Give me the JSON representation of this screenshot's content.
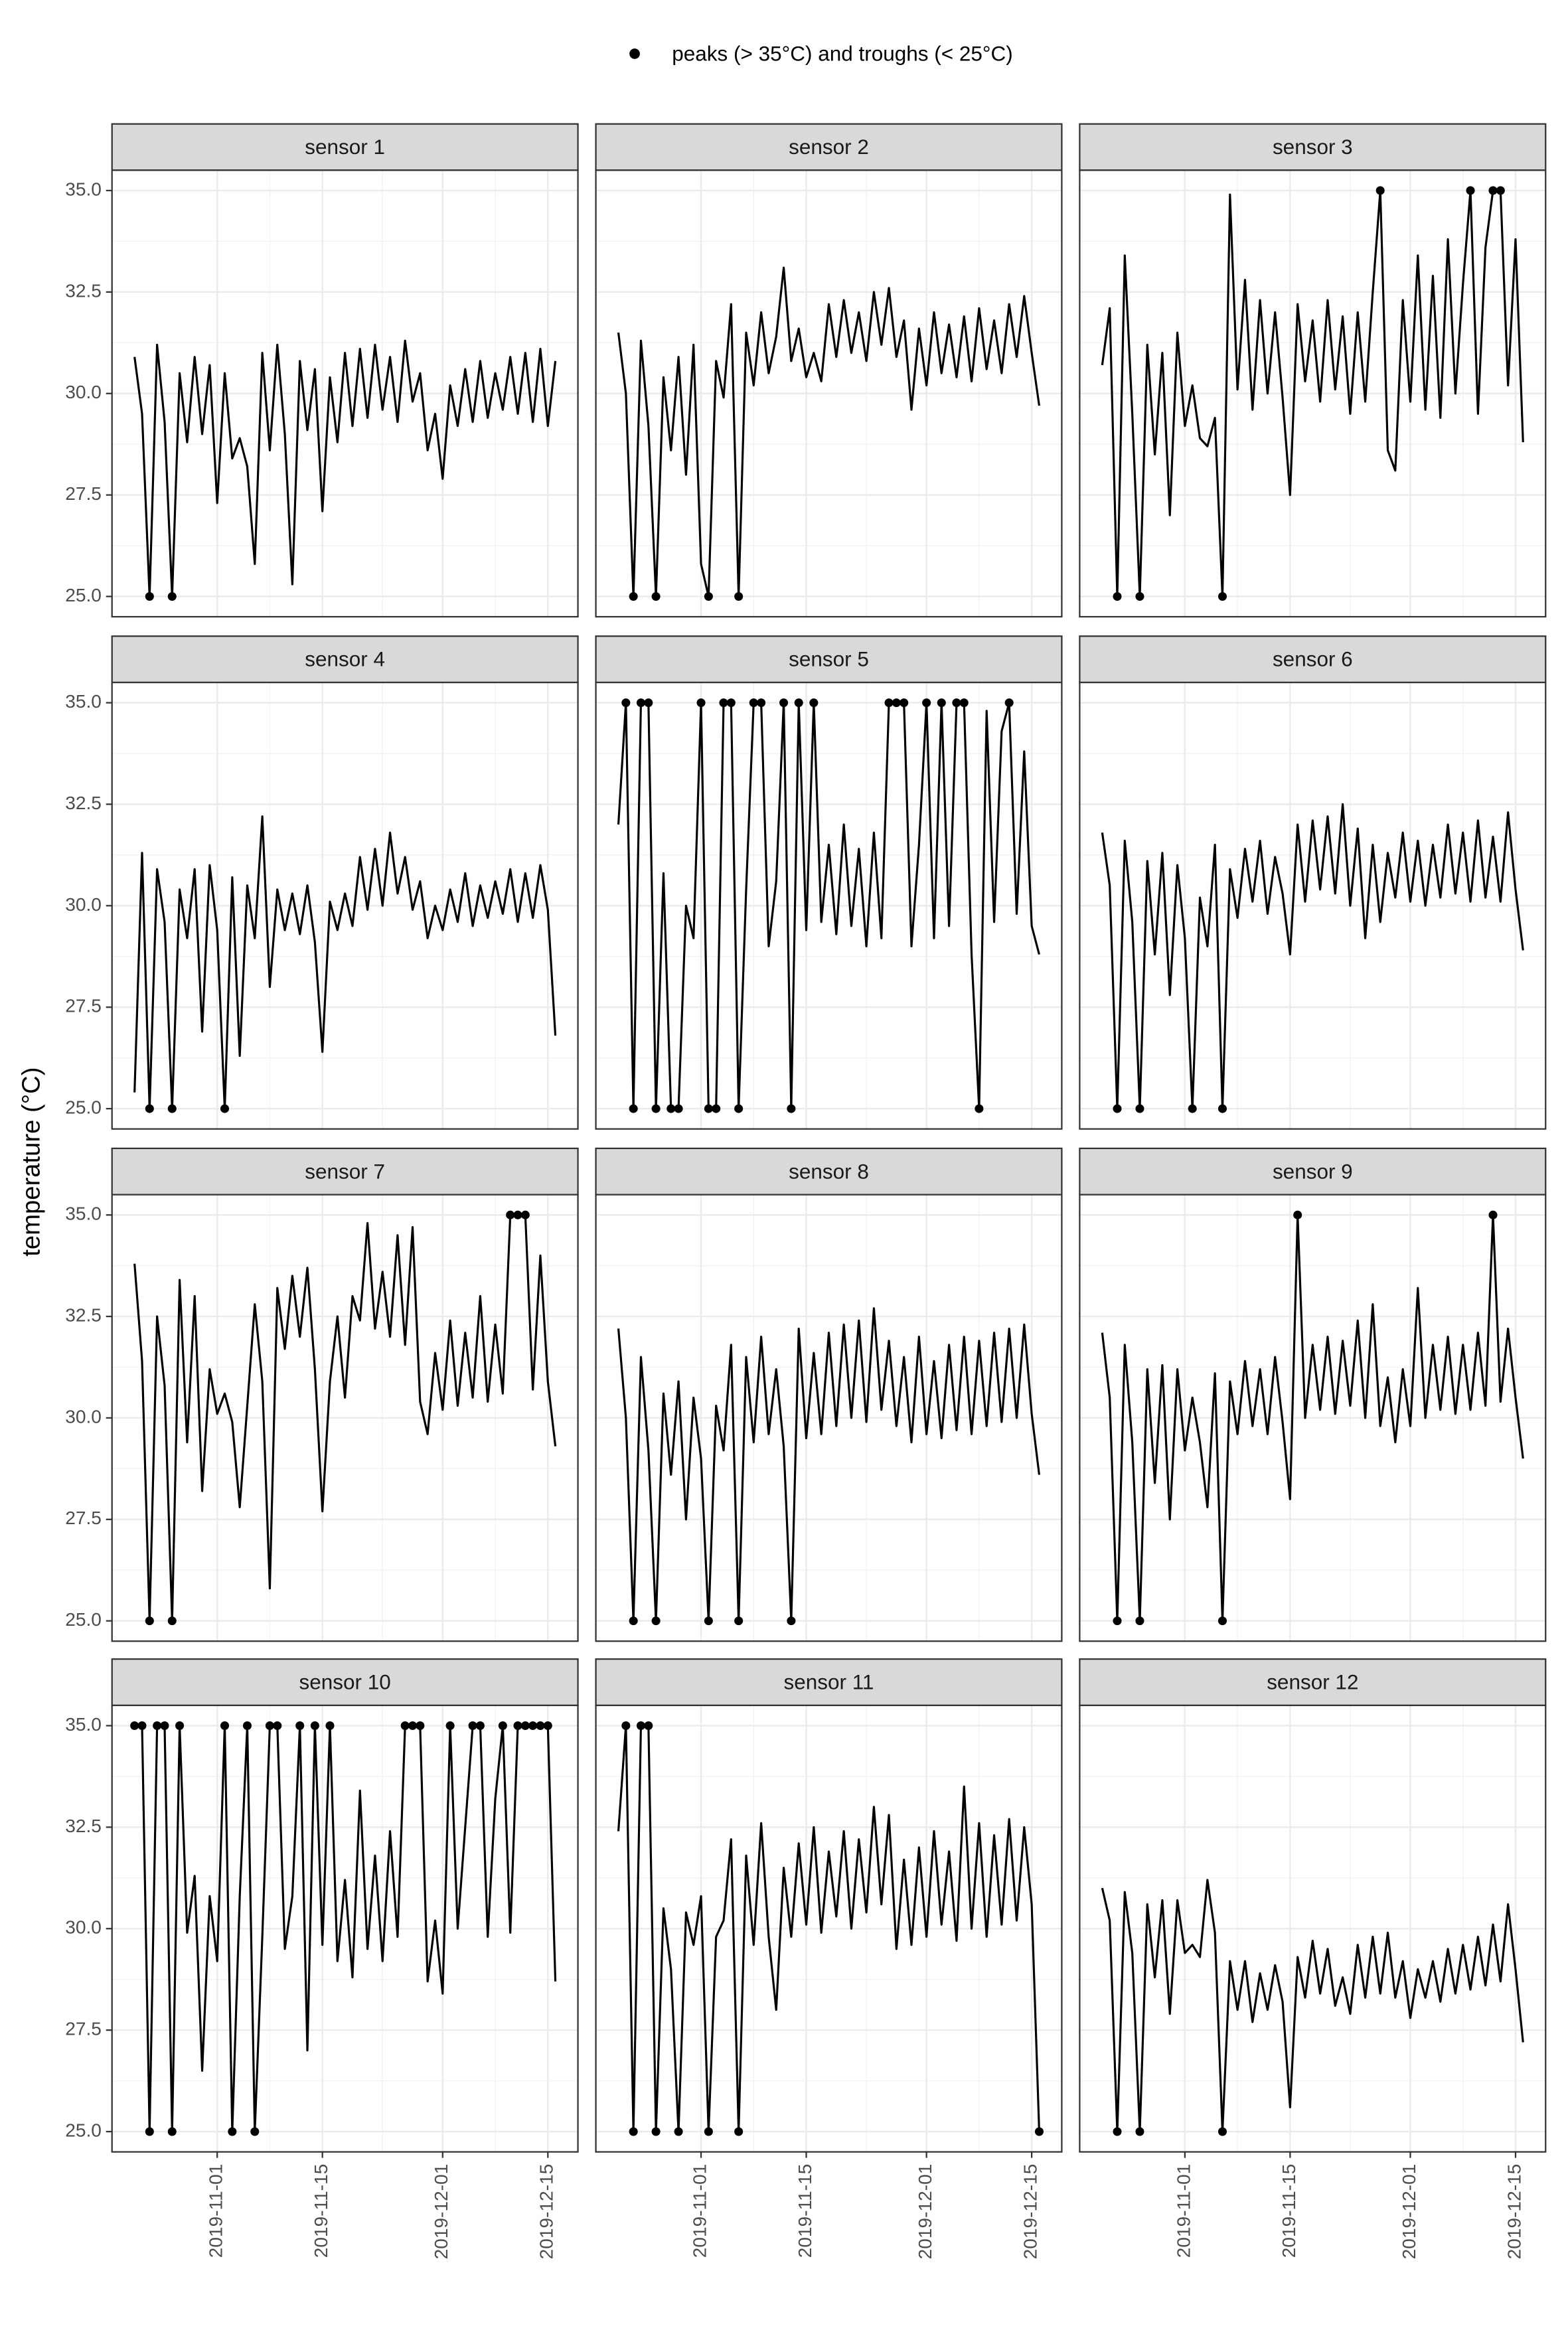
{
  "chart_data": {
    "type": "line",
    "legend": "peaks (> 35°C) and troughs (< 25°C)",
    "y_label": "temperature (°C)",
    "color": "#000000",
    "grid": true,
    "xlim": [
      "2019-10-18",
      "2019-12-19"
    ],
    "xticks": [
      "2019-11-01",
      "2019-11-15",
      "2019-12-01",
      "2019-12-15"
    ],
    "ylim": [
      24.5,
      35.5
    ],
    "yticks": [
      {
        "value": 25,
        "label": "25.0"
      },
      27.5,
      {
        "value": 30,
        "label": "30.0"
      },
      32.5,
      {
        "value": 35,
        "label": "35.0"
      }
    ],
    "x": [
      "2019-10-21",
      "2019-10-22",
      "2019-10-23",
      "2019-10-24",
      "2019-10-25",
      "2019-10-26",
      "2019-10-27",
      "2019-10-28",
      "2019-10-29",
      "2019-10-30",
      "2019-10-31",
      "2019-11-01",
      "2019-11-02",
      "2019-11-03",
      "2019-11-04",
      "2019-11-05",
      "2019-11-06",
      "2019-11-07",
      "2019-11-08",
      "2019-11-09",
      "2019-11-10",
      "2019-11-11",
      "2019-11-12",
      "2019-11-13",
      "2019-11-14",
      "2019-11-15",
      "2019-11-16",
      "2019-11-17",
      "2019-11-18",
      "2019-11-19",
      "2019-11-20",
      "2019-11-21",
      "2019-11-22",
      "2019-11-23",
      "2019-11-24",
      "2019-11-25",
      "2019-11-26",
      "2019-11-27",
      "2019-11-28",
      "2019-11-29",
      "2019-11-30",
      "2019-12-01",
      "2019-12-02",
      "2019-12-03",
      "2019-12-04",
      "2019-12-05",
      "2019-12-06",
      "2019-12-07",
      "2019-12-08",
      "2019-12-09",
      "2019-12-10",
      "2019-12-11",
      "2019-12-12",
      "2019-12-13",
      "2019-12-14",
      "2019-12-15",
      "2019-12-16"
    ],
    "panels": [
      {
        "title": "sensor 1",
        "values": [
          30.9,
          29.5,
          25,
          31.2,
          29.3,
          25,
          30.5,
          28.8,
          30.9,
          29.0,
          30.7,
          27.3,
          30.5,
          28.4,
          28.9,
          28.2,
          25.8,
          31.0,
          28.6,
          31.2,
          29.0,
          25.3,
          30.8,
          29.1,
          30.6,
          27.1,
          30.4,
          28.8,
          31.0,
          29.2,
          31.1,
          29.4,
          31.2,
          29.6,
          30.9,
          29.3,
          31.3,
          29.8,
          30.5,
          28.6,
          29.5,
          27.9,
          30.2,
          29.2,
          30.6,
          29.3,
          30.8,
          29.4,
          30.5,
          29.6,
          30.9,
          29.5,
          31.0,
          29.3,
          31.1,
          29.2,
          30.8
        ],
        "points": {
          "x": [
            "2019-10-23",
            "2019-10-26"
          ],
          "values": [
            25,
            25
          ]
        }
      },
      {
        "title": "sensor 2",
        "values": [
          31.5,
          30.0,
          25,
          31.3,
          29.2,
          25,
          30.4,
          28.6,
          30.9,
          28.0,
          31.2,
          25.8,
          25,
          30.8,
          29.9,
          32.2,
          25,
          31.5,
          30.2,
          32.0,
          30.5,
          31.4,
          33.1,
          30.8,
          31.6,
          30.4,
          31.0,
          30.3,
          32.2,
          30.9,
          32.3,
          31.0,
          32.0,
          30.8,
          32.5,
          31.2,
          32.6,
          30.9,
          31.8,
          29.6,
          31.6,
          30.2,
          32.0,
          30.5,
          31.7,
          30.4,
          31.9,
          30.3,
          32.1,
          30.6,
          31.8,
          30.5,
          32.2,
          30.9,
          32.4,
          31.0,
          29.7
        ],
        "points": {
          "x": [
            "2019-10-23",
            "2019-10-26",
            "2019-11-02",
            "2019-11-06"
          ],
          "values": [
            25,
            25,
            25,
            25
          ]
        }
      },
      {
        "title": "sensor 3",
        "values": [
          30.7,
          32.1,
          25,
          33.4,
          29.5,
          25,
          31.2,
          28.5,
          31.0,
          27.0,
          31.5,
          29.2,
          30.2,
          28.9,
          28.7,
          29.4,
          25,
          34.9,
          30.1,
          32.8,
          29.6,
          32.3,
          30.0,
          32.0,
          29.9,
          27.5,
          32.2,
          30.3,
          31.8,
          29.8,
          32.3,
          30.1,
          31.9,
          29.5,
          32.0,
          29.8,
          32.5,
          35,
          28.6,
          28.1,
          32.3,
          29.8,
          33.4,
          29.6,
          32.9,
          29.4,
          33.8,
          30.0,
          32.7,
          35,
          29.5,
          33.6,
          35,
          35,
          30.2,
          33.8,
          28.8
        ],
        "points": {
          "x": [
            "2019-10-23",
            "2019-10-26",
            "2019-11-06",
            "2019-11-27",
            "2019-12-09",
            "2019-12-12",
            "2019-12-13"
          ],
          "values": [
            25,
            25,
            25,
            35,
            35,
            35,
            35
          ]
        }
      },
      {
        "title": "sensor 4",
        "values": [
          25.4,
          31.3,
          25,
          30.9,
          29.6,
          25,
          30.4,
          29.2,
          30.9,
          26.9,
          31.0,
          29.4,
          25,
          30.7,
          26.3,
          30.5,
          29.2,
          32.2,
          28.0,
          30.4,
          29.4,
          30.3,
          29.3,
          30.5,
          29.1,
          26.4,
          30.1,
          29.4,
          30.3,
          29.5,
          31.2,
          29.9,
          31.4,
          30.0,
          31.8,
          30.3,
          31.2,
          29.9,
          30.6,
          29.2,
          30.0,
          29.4,
          30.4,
          29.6,
          30.8,
          29.5,
          30.5,
          29.7,
          30.6,
          29.8,
          30.9,
          29.6,
          30.8,
          29.7,
          31.0,
          29.9,
          26.8
        ],
        "points": {
          "x": [
            "2019-10-23",
            "2019-10-26",
            "2019-11-02"
          ],
          "values": [
            25,
            25,
            25
          ]
        }
      },
      {
        "title": "sensor 5",
        "values": [
          32.0,
          35,
          25,
          35,
          35,
          25,
          30.8,
          25,
          25,
          30.0,
          29.2,
          35,
          25,
          25,
          35,
          35,
          25,
          30.4,
          35,
          35,
          29.0,
          30.6,
          35,
          25,
          35,
          29.4,
          35,
          29.6,
          31.5,
          29.3,
          32.0,
          29.5,
          31.4,
          29.0,
          31.8,
          29.2,
          35,
          35,
          35,
          29.0,
          31.5,
          35,
          29.2,
          35,
          29.5,
          35,
          35,
          28.8,
          25,
          34.8,
          29.6,
          34.3,
          35,
          29.8,
          33.8,
          29.5,
          28.8
        ],
        "points": {
          "x": [
            "2019-10-22",
            "2019-10-23",
            "2019-10-24",
            "2019-10-25",
            "2019-10-26",
            "2019-10-28",
            "2019-10-29",
            "2019-11-01",
            "2019-11-02",
            "2019-11-03",
            "2019-11-04",
            "2019-11-05",
            "2019-11-06",
            "2019-11-08",
            "2019-11-09",
            "2019-11-12",
            "2019-11-13",
            "2019-11-14",
            "2019-11-16",
            "2019-11-26",
            "2019-11-27",
            "2019-11-28",
            "2019-12-01",
            "2019-12-03",
            "2019-12-05",
            "2019-12-06",
            "2019-12-08",
            "2019-12-12"
          ],
          "values": [
            35,
            25,
            35,
            35,
            25,
            25,
            25,
            35,
            25,
            25,
            35,
            35,
            25,
            35,
            35,
            35,
            25,
            35,
            35,
            35,
            35,
            35,
            35,
            35,
            35,
            35,
            25,
            35
          ]
        }
      },
      {
        "title": "sensor 6",
        "values": [
          31.8,
          30.5,
          25,
          31.6,
          29.6,
          25,
          31.1,
          28.8,
          31.3,
          27.8,
          31.0,
          29.2,
          25,
          30.2,
          29.0,
          31.5,
          25,
          30.9,
          29.7,
          31.4,
          30.1,
          31.6,
          29.8,
          31.2,
          30.3,
          28.8,
          32.0,
          30.1,
          32.1,
          30.4,
          32.2,
          30.3,
          32.5,
          30.0,
          31.9,
          29.2,
          31.5,
          29.6,
          31.3,
          30.2,
          31.8,
          30.1,
          31.6,
          30.0,
          31.5,
          30.2,
          32.0,
          30.3,
          31.8,
          30.1,
          32.1,
          30.2,
          31.7,
          30.1,
          32.3,
          30.4,
          28.9
        ],
        "points": {
          "x": [
            "2019-10-23",
            "2019-10-26",
            "2019-11-02",
            "2019-11-06"
          ],
          "values": [
            25,
            25,
            25,
            25
          ]
        }
      },
      {
        "title": "sensor 7",
        "values": [
          33.8,
          31.4,
          25,
          32.5,
          30.8,
          25,
          33.4,
          29.4,
          33.0,
          28.2,
          31.2,
          30.1,
          30.6,
          29.9,
          27.8,
          30.3,
          32.8,
          30.9,
          25.8,
          33.2,
          31.7,
          33.5,
          32.0,
          33.7,
          31.2,
          27.7,
          30.9,
          32.5,
          30.5,
          33.0,
          32.4,
          34.8,
          32.2,
          33.6,
          32.0,
          34.5,
          31.8,
          34.7,
          30.4,
          29.6,
          31.6,
          30.2,
          32.4,
          30.3,
          32.1,
          30.5,
          33.0,
          30.4,
          32.3,
          30.6,
          35,
          35,
          35,
          30.7,
          34.0,
          30.9,
          29.3
        ],
        "points": {
          "x": [
            "2019-10-23",
            "2019-10-26",
            "2019-12-10",
            "2019-12-11",
            "2019-12-12"
          ],
          "values": [
            25,
            25,
            35,
            35,
            35
          ]
        }
      },
      {
        "title": "sensor 8",
        "values": [
          32.2,
          30.0,
          25,
          31.5,
          29.2,
          25,
          30.6,
          28.6,
          30.9,
          27.5,
          30.5,
          29.0,
          25,
          30.3,
          29.2,
          31.8,
          25,
          31.5,
          29.4,
          32.0,
          29.6,
          31.2,
          29.3,
          25,
          32.2,
          29.5,
          31.6,
          29.6,
          32.1,
          29.8,
          32.3,
          30.0,
          32.4,
          29.9,
          32.7,
          30.2,
          31.9,
          29.8,
          31.5,
          29.4,
          32.0,
          29.6,
          31.4,
          29.5,
          31.8,
          29.7,
          32.0,
          29.6,
          31.9,
          29.8,
          32.1,
          29.9,
          32.2,
          30.0,
          32.3,
          30.1,
          28.6
        ],
        "points": {
          "x": [
            "2019-10-23",
            "2019-10-26",
            "2019-11-02",
            "2019-11-06",
            "2019-11-13"
          ],
          "values": [
            25,
            25,
            25,
            25,
            25
          ]
        }
      },
      {
        "title": "sensor 9",
        "values": [
          32.1,
          30.5,
          25,
          31.8,
          29.4,
          25,
          31.2,
          28.4,
          31.3,
          27.5,
          31.2,
          29.2,
          30.5,
          29.4,
          27.8,
          31.1,
          25,
          30.9,
          29.6,
          31.4,
          29.8,
          31.2,
          29.6,
          31.5,
          29.9,
          28.0,
          35,
          30.0,
          31.8,
          30.2,
          32.0,
          30.1,
          31.9,
          30.3,
          32.4,
          30.0,
          32.8,
          29.8,
          31.0,
          29.4,
          31.2,
          29.8,
          33.2,
          30.0,
          31.8,
          30.2,
          32.0,
          30.1,
          31.8,
          30.2,
          32.1,
          30.3,
          35,
          30.4,
          32.2,
          30.5,
          29.0
        ],
        "points": {
          "x": [
            "2019-10-23",
            "2019-10-26",
            "2019-11-06",
            "2019-11-16",
            "2019-12-12"
          ],
          "values": [
            25,
            25,
            25,
            35,
            35
          ]
        }
      },
      {
        "title": "sensor 10",
        "values": [
          35,
          35,
          25,
          35,
          35,
          25,
          35,
          29.9,
          31.3,
          26.5,
          30.8,
          29.2,
          35,
          25,
          30.8,
          35,
          25,
          29.8,
          35,
          35,
          29.5,
          30.8,
          35,
          27.0,
          35,
          29.6,
          35,
          29.2,
          31.2,
          28.8,
          33.4,
          29.5,
          31.8,
          29.2,
          32.4,
          29.8,
          35,
          35,
          35,
          28.7,
          30.2,
          28.4,
          35,
          30.0,
          32.5,
          35,
          35,
          29.8,
          33.2,
          35,
          29.9,
          35,
          35,
          35,
          35,
          35,
          28.7
        ],
        "points": {
          "x": [
            "2019-10-21",
            "2019-10-22",
            "2019-10-23",
            "2019-10-24",
            "2019-10-25",
            "2019-10-26",
            "2019-10-27",
            "2019-11-02",
            "2019-11-03",
            "2019-11-05",
            "2019-11-06",
            "2019-11-08",
            "2019-11-09",
            "2019-11-12",
            "2019-11-14",
            "2019-11-16",
            "2019-11-26",
            "2019-11-27",
            "2019-11-28",
            "2019-12-02",
            "2019-12-05",
            "2019-12-06",
            "2019-12-09",
            "2019-12-11",
            "2019-12-12",
            "2019-12-13",
            "2019-12-14",
            "2019-12-15"
          ],
          "values": [
            35,
            35,
            25,
            35,
            35,
            25,
            35,
            35,
            25,
            35,
            25,
            35,
            35,
            35,
            35,
            35,
            35,
            35,
            35,
            35,
            35,
            35,
            35,
            35,
            35,
            35,
            35,
            35
          ]
        }
      },
      {
        "title": "sensor 11",
        "values": [
          32.4,
          35,
          25,
          35,
          35,
          25,
          30.5,
          29.0,
          25,
          30.4,
          29.6,
          30.8,
          25,
          29.8,
          30.2,
          32.2,
          25,
          31.8,
          29.6,
          32.6,
          29.8,
          28.0,
          31.5,
          29.8,
          32.1,
          30.1,
          32.5,
          29.9,
          31.9,
          30.3,
          32.4,
          30.0,
          32.2,
          30.4,
          33.0,
          30.6,
          32.8,
          29.5,
          31.7,
          29.6,
          32.0,
          29.8,
          32.4,
          30.1,
          31.9,
          29.7,
          33.5,
          30.0,
          32.6,
          29.8,
          32.3,
          30.1,
          32.7,
          30.2,
          32.5,
          30.6,
          25
        ],
        "points": {
          "x": [
            "2019-10-22",
            "2019-10-23",
            "2019-10-24",
            "2019-10-25",
            "2019-10-26",
            "2019-10-29",
            "2019-11-02",
            "2019-11-06",
            "2019-12-16"
          ],
          "values": [
            35,
            25,
            35,
            35,
            25,
            25,
            25,
            25,
            25
          ]
        }
      },
      {
        "title": "sensor 12",
        "values": [
          31.0,
          30.2,
          25,
          30.9,
          29.4,
          25,
          30.6,
          28.8,
          30.7,
          27.9,
          30.7,
          29.4,
          29.6,
          29.3,
          31.2,
          29.9,
          25,
          29.2,
          28.0,
          29.2,
          27.7,
          28.9,
          28.0,
          29.1,
          28.2,
          25.6,
          29.3,
          28.3,
          29.7,
          28.4,
          29.5,
          28.1,
          28.8,
          27.9,
          29.6,
          28.3,
          29.8,
          28.4,
          29.9,
          28.3,
          29.2,
          27.8,
          29.0,
          28.3,
          29.2,
          28.2,
          29.5,
          28.4,
          29.6,
          28.5,
          29.8,
          28.6,
          30.1,
          28.7,
          30.6,
          29.0,
          27.2
        ],
        "points": {
          "x": [
            "2019-10-23",
            "2019-10-26",
            "2019-11-06"
          ],
          "values": [
            25,
            25,
            25
          ]
        }
      }
    ]
  }
}
